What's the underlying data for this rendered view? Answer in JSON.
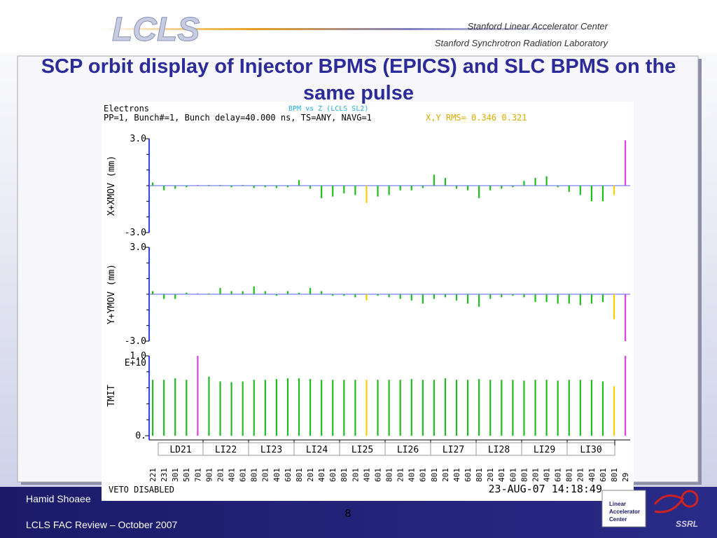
{
  "header": {
    "logo": "LCLS",
    "lab1": "Stanford Linear Accelerator Center",
    "lab2": "Stanford Synchrotron Radiation Laboratory"
  },
  "title": "SCP orbit display of Injector BPMS (EPICS) and SLC BPMS on the same pulse",
  "plot": {
    "beam": "Electrons",
    "plot_name": "BPM vs Z (LCLS SL2)",
    "params": "PP=1, Bunch#=1, Bunch delay=40.000 ns, TS=ANY, NAVG=1",
    "rms": "X,Y RMS= 0.346 0.321",
    "bar_colors": [
      "#22bb22",
      "#22bb22",
      "#22bb22",
      "#22bb22",
      "#dd44dd",
      "#22bb22",
      "#22bb22",
      "#22bb22",
      "#22bb22",
      "#22bb22",
      "#22bb22",
      "#22bb22",
      "#22bb22",
      "#22bb22",
      "#22bb22",
      "#22bb22",
      "#22bb22",
      "#22bb22",
      "#22bb22",
      "#ffcc00",
      "#22bb22",
      "#22bb22",
      "#22bb22",
      "#22bb22",
      "#22bb22",
      "#22bb22",
      "#22bb22",
      "#22bb22",
      "#22bb22",
      "#22bb22",
      "#22bb22",
      "#22bb22",
      "#22bb22",
      "#22bb22",
      "#22bb22",
      "#22bb22",
      "#22bb22",
      "#22bb22",
      "#22bb22",
      "#22bb22",
      "#22bb22",
      "#ffcc00",
      "#dd44dd"
    ],
    "panels": [
      {
        "axis_label": "X+XMOV (mm)",
        "ylim": [
          -3,
          3
        ],
        "yticks": [
          {
            "value": 3,
            "label": "3.0"
          },
          {
            "value": -3,
            "label": "-3.0"
          }
        ],
        "minor_yticks": [
          -2,
          -1,
          0,
          1,
          2
        ],
        "values": [
          0.2,
          -0.3,
          -0.2,
          -0.1,
          0.05,
          0.05,
          0.05,
          -0.1,
          0.05,
          -0.15,
          -0.1,
          -0.15,
          -0.1,
          0.35,
          -0.2,
          -0.8,
          -0.7,
          -0.5,
          -0.6,
          -1.1,
          -0.7,
          -0.6,
          -0.3,
          -0.3,
          -0.15,
          0.7,
          0.5,
          -0.2,
          -0.3,
          -0.8,
          -0.3,
          -0.2,
          -0.1,
          0.3,
          0.5,
          0.6,
          -0.1,
          -0.4,
          -0.6,
          -1.0,
          -1.0,
          -0.6,
          2.9
        ]
      },
      {
        "axis_label": "Y+YMOV (mm)",
        "ylim": [
          -3,
          3
        ],
        "yticks": [
          {
            "value": 3,
            "label": "3.0"
          },
          {
            "value": -3,
            "label": "-3.0"
          }
        ],
        "minor_yticks": [
          -2,
          -1,
          0,
          1,
          2
        ],
        "values": [
          0.2,
          -0.3,
          -0.3,
          0.1,
          0.05,
          0.05,
          0.4,
          0.2,
          0.2,
          0.5,
          0.2,
          -0.1,
          0.2,
          0.1,
          0.4,
          0.2,
          -0.1,
          -0.1,
          -0.2,
          -0.4,
          -0.1,
          -0.2,
          -0.3,
          -0.4,
          -0.6,
          -0.3,
          -0.2,
          -0.4,
          -0.6,
          -0.8,
          -0.3,
          -0.2,
          -0.1,
          -0.2,
          -0.5,
          -0.5,
          -0.6,
          -0.6,
          -0.7,
          -0.6,
          -0.5,
          -1.6,
          -3.0
        ]
      },
      {
        "axis_label": "TMIT",
        "ylim": [
          0,
          1
        ],
        "yticks": [
          {
            "value": 1,
            "label": "1.0"
          },
          {
            "value": 0,
            "label": "0."
          }
        ],
        "exponent_label": "E+10",
        "minor_yticks": [
          0.2,
          0.4,
          0.6,
          0.8
        ],
        "values": [
          0.7,
          0.7,
          0.72,
          0.7,
          1.0,
          0.74,
          0.68,
          0.67,
          0.68,
          0.7,
          0.7,
          0.71,
          0.72,
          0.72,
          0.71,
          0.7,
          0.7,
          0.7,
          0.7,
          0.7,
          0.7,
          0.7,
          0.7,
          0.71,
          0.7,
          0.7,
          0.72,
          0.7,
          0.7,
          0.71,
          0.7,
          0.7,
          0.7,
          0.69,
          0.7,
          0.7,
          0.69,
          0.7,
          0.7,
          0.7,
          0.68,
          0.62,
          1.0
        ]
      }
    ],
    "sectors": [
      "LD21",
      "LI22",
      "LI23",
      "LI24",
      "LI25",
      "LI26",
      "LI27",
      "LI28",
      "LI29",
      "LI30"
    ],
    "bpm_labels": [
      "221",
      "231",
      "301",
      "501",
      "701",
      "901",
      "201",
      "401",
      "601",
      "801",
      "201",
      "401",
      "601",
      "801",
      "201",
      "401",
      "601",
      "801",
      "201",
      "401",
      "601",
      "801",
      "201",
      "401",
      "601",
      "801",
      "201",
      "401",
      "601",
      "801",
      "201",
      "401",
      "601",
      "801",
      "201",
      "401",
      "601",
      "801",
      "201",
      "401",
      "601",
      "801",
      "29"
    ],
    "status": "VETO DISABLED",
    "timestamp": "23-AUG-07 14:18:49"
  },
  "footer": {
    "author": "Hamid Shoaee",
    "page": "8",
    "event": "LCLS FAC Review – October 2007",
    "slac_logo": [
      "Linear",
      "Accelerator",
      "Center"
    ],
    "ssrl": "SSRL"
  }
}
